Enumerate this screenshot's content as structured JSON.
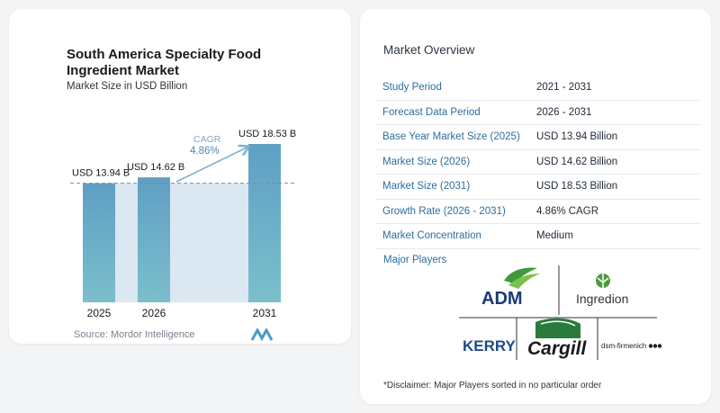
{
  "chart_data": {
    "type": "bar",
    "title_lines": [
      "South America Specialty Food",
      "Ingredient Market"
    ],
    "subtitle": "Market Size in USD Billion",
    "categories": [
      "2025",
      "2026",
      "2031"
    ],
    "values": [
      13.94,
      14.62,
      18.53
    ],
    "data_labels": [
      "USD 13.94 B",
      "USD 14.62 B",
      "USD 18.53 B"
    ],
    "cagr_label": "CAGR",
    "cagr_value": "4.86%",
    "bar_color": "#5f9fc4",
    "bar_color_bottom": "#7bbfcc",
    "band_color": "#dbe7f1",
    "arrow_color": "#7fb0cf"
  },
  "source": "Source:  Mordor Intelligence",
  "overview": {
    "title": "Market Overview",
    "rows": [
      {
        "label": "Study Period",
        "value": "2021 - 2031"
      },
      {
        "label": "Forecast Data Period",
        "value": "2026 - 2031"
      },
      {
        "label": "Base Year Market Size (2025)",
        "value": "USD 13.94 Billion"
      },
      {
        "label": "Market Size (2026)",
        "value": "USD 14.62 Billion"
      },
      {
        "label": "Market Size (2031)",
        "value": "USD 18.53 Billion"
      },
      {
        "label": "Growth Rate (2026 - 2031)",
        "value": "4.86% CAGR"
      },
      {
        "label": "Market Concentration",
        "value": "Medium"
      }
    ]
  },
  "players": {
    "title": "Major Players",
    "logos": [
      "ADM",
      "Ingredion",
      "KERRY",
      "Cargill",
      "dsm-firmenich"
    ]
  },
  "disclaimer": "*Disclaimer: Major Players sorted in no particular order"
}
